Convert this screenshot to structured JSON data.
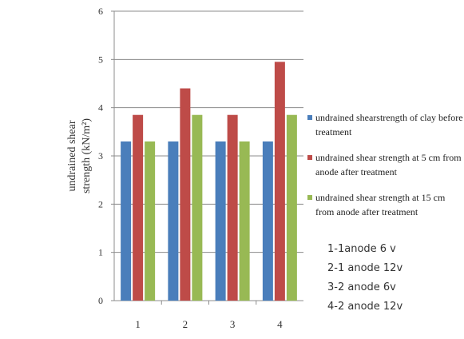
{
  "chart_data": {
    "type": "bar",
    "categories": [
      "1",
      "2",
      "3",
      "4"
    ],
    "series": [
      {
        "name": "undrained shearstrength of clay before treatment",
        "values": [
          3.3,
          3.3,
          3.3,
          3.3
        ],
        "color": "#4A7EBB"
      },
      {
        "name": "undrained shear strength at 5 cm from anode after treatment",
        "values": [
          3.85,
          4.4,
          3.85,
          4.95
        ],
        "color": "#BE4B48"
      },
      {
        "name": "undrained shear strength at 15 cm from anode after treatment",
        "values": [
          3.3,
          3.85,
          3.3,
          3.85
        ],
        "color": "#98B954"
      }
    ],
    "title": "",
    "xlabel": "",
    "ylabel": "undrained shear strength (kN/m²)",
    "ylim": [
      0,
      6
    ],
    "yticks": [
      "0",
      "1",
      "2",
      "3",
      "4",
      "5",
      "6"
    ],
    "grid": true,
    "legend_position": "right"
  },
  "notes": [
    "1-1anode 6 v",
    "2-1 anode 12v",
    "3-2 anode 6v",
    "4-2 anode 12v"
  ]
}
